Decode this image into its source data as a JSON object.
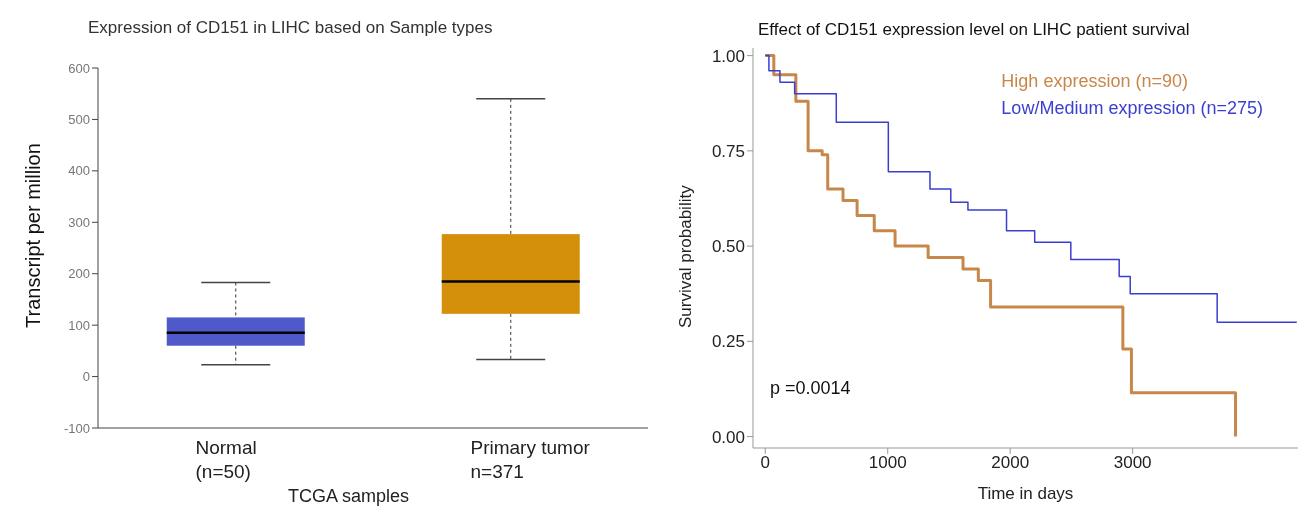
{
  "chart_data": [
    {
      "type": "box",
      "title": "Expression of CD151 in LIHC based on Sample types",
      "ylabel": "Transcript per million",
      "xlabel": "TCGA samples",
      "categories": [
        "Normal\n(n=50)",
        "Primary tumor\nn=371"
      ],
      "colors": [
        "#5059c9",
        "#d4900a"
      ],
      "boxes": [
        {
          "low": 23,
          "q1": 60,
          "median": 85,
          "q3": 115,
          "high": 183
        },
        {
          "low": 33,
          "q1": 122,
          "median": 185,
          "q3": 277,
          "high": 540
        }
      ],
      "ylim": [
        -100,
        600
      ],
      "yticks": [
        -100,
        0,
        100,
        200,
        300,
        400,
        500,
        600
      ]
    },
    {
      "type": "step",
      "title": "Effect of CD151 expression level on LIHC patient survival",
      "xlabel": "Time in days",
      "ylabel": "Survival probability",
      "legend": "top right",
      "annotations": [
        "p =0.0014"
      ],
      "series": [
        {
          "name": "High expression (n=90)",
          "color": "#c8874a",
          "x": [
            0,
            70,
            250,
            350,
            465,
            510,
            635,
            750,
            890,
            1060,
            1330,
            1615,
            1740,
            1840,
            2920,
            2990,
            3840
          ],
          "values": [
            1,
            0.95,
            0.88,
            0.75,
            0.74,
            0.65,
            0.62,
            0.58,
            0.54,
            0.5,
            0.47,
            0.44,
            0.41,
            0.34,
            0.23,
            0.115,
            0
          ]
        },
        {
          "name": "Low/Medium expression (n=275)",
          "color": "#3a3fcf",
          "x": [
            0,
            30,
            120,
            240,
            580,
            1005,
            1345,
            1515,
            1655,
            1970,
            2200,
            2495,
            2890,
            2980,
            3690,
            4340
          ],
          "values": [
            1,
            0.96,
            0.93,
            0.9,
            0.825,
            0.695,
            0.65,
            0.615,
            0.595,
            0.54,
            0.51,
            0.465,
            0.42,
            0.375,
            0.3,
            0.3
          ]
        }
      ],
      "xlim": [
        -100,
        4350
      ],
      "xticks": [
        0,
        1000,
        2000,
        3000
      ],
      "ylim": [
        -0.03,
        1.02
      ],
      "yticks": [
        {
          "value": 0,
          "label": "0.00"
        },
        {
          "value": 0.25,
          "label": "0.25"
        },
        {
          "value": 0.5,
          "label": "0.50"
        },
        {
          "value": 0.75,
          "label": "0.75"
        },
        {
          "value": 1,
          "label": "1.00"
        }
      ]
    }
  ]
}
